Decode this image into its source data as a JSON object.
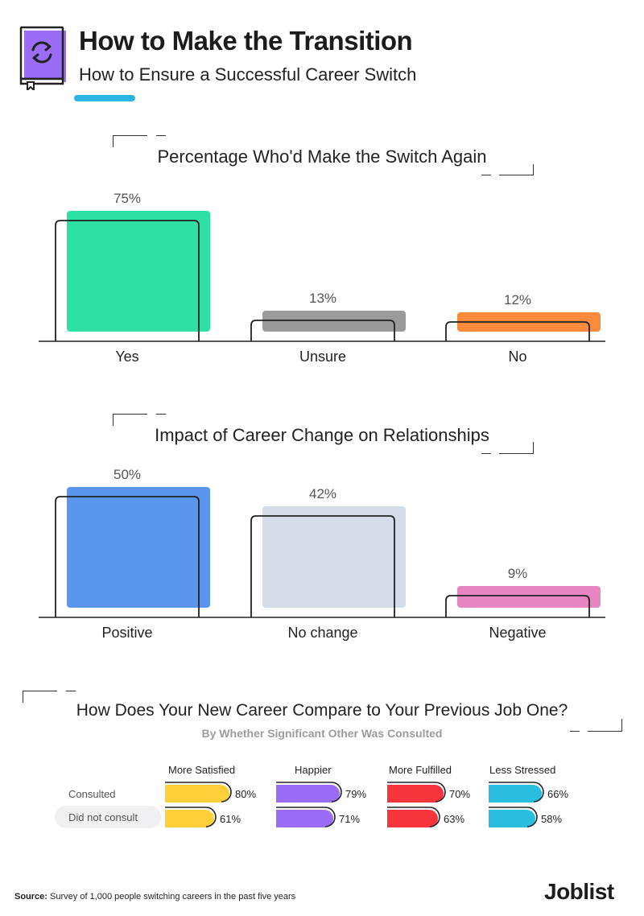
{
  "header": {
    "title": "How to Make the Transition",
    "subtitle": "How to Ensure a Successful Career Switch",
    "icon": "refresh-book-icon",
    "accent_color": "#2bb5e0",
    "icon_color": "#9b6cf6"
  },
  "chart_data": [
    {
      "type": "bar",
      "title": "Percentage Who'd Make the Switch Again",
      "categories": [
        "Yes",
        "Unsure",
        "No"
      ],
      "values": [
        75,
        13,
        12
      ],
      "labels": [
        "75%",
        "13%",
        "12%"
      ],
      "colors": [
        "#2ee0a4",
        "#9b9b9b",
        "#f98b3a"
      ],
      "ylim": [
        0,
        100
      ]
    },
    {
      "type": "bar",
      "title": "Impact of Career Change on Relationships",
      "categories": [
        "Positive",
        "No change",
        "Negative"
      ],
      "values": [
        50,
        42,
        9
      ],
      "labels": [
        "50%",
        "42%",
        "9%"
      ],
      "colors": [
        "#5a96ec",
        "#d6dce7",
        "#e886c4"
      ],
      "ylim": [
        0,
        100
      ]
    },
    {
      "type": "bar",
      "orientation": "horizontal",
      "title": "How Does Your New Career Compare to Your Previous Job One?",
      "subtitle": "By Whether Significant Other Was Consulted",
      "groups": [
        "More Satisfied",
        "Happier",
        "More Fulfilled",
        "Less Stressed"
      ],
      "series": [
        {
          "name": "Consulted",
          "values": [
            80,
            79,
            70,
            66
          ],
          "labels": [
            "80%",
            "79%",
            "70%",
            "66%"
          ]
        },
        {
          "name": "Did not consult",
          "values": [
            61,
            71,
            63,
            58
          ],
          "labels": [
            "61%",
            "71%",
            "63%",
            "58%"
          ]
        }
      ],
      "group_colors": [
        "#fdd03a",
        "#9b6cf6",
        "#f5353b",
        "#29bde0"
      ],
      "ylim": [
        0,
        100
      ]
    }
  ],
  "footer": {
    "source_label": "Source:",
    "source_text": "Survey of 1,000 people switching careers in the past five years",
    "logo": "Joblist"
  }
}
